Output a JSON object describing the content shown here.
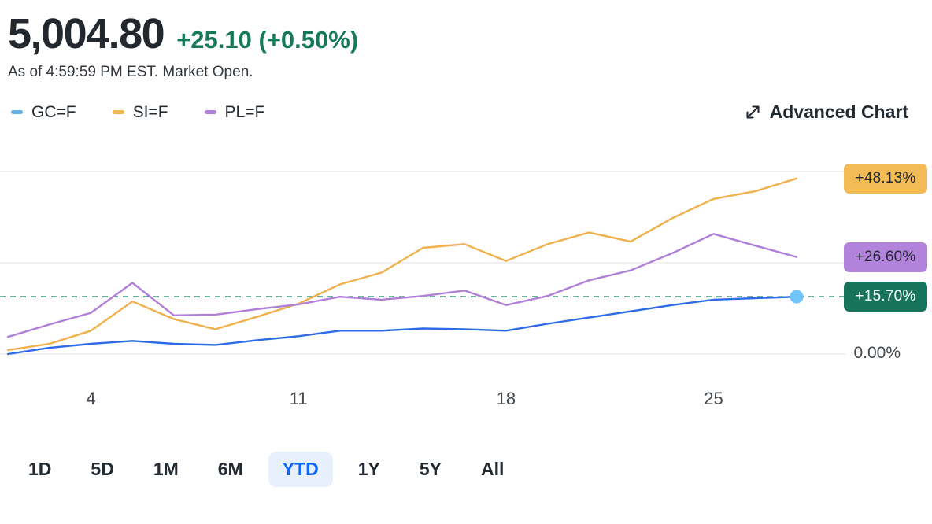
{
  "header": {
    "price": "5,004.80",
    "change": "+25.10 (+0.50%)",
    "as_of": "As of 4:59:59 PM EST. Market Open."
  },
  "legend": {
    "items": [
      {
        "label": "GC=F",
        "color": "#63b1e5"
      },
      {
        "label": "SI=F",
        "color": "#f2b84f"
      },
      {
        "label": "PL=F",
        "color": "#b07fd8"
      }
    ]
  },
  "advanced_chart": {
    "label": "Advanced Chart"
  },
  "chart_data": {
    "type": "line",
    "title": "YTD percent change comparison of GC=F, SI=F, PL=F",
    "x_tick_labels": [
      "4",
      "11",
      "18",
      "25"
    ],
    "x_tick_indices": [
      2,
      7,
      12,
      17
    ],
    "gridline_values": [
      0,
      25,
      50
    ],
    "ylim": [
      0,
      50
    ],
    "baseline_label": "0.00%",
    "reference_value": 15.7,
    "reference_color": "#2e7d6a",
    "grid_color": "#e3e3e3",
    "legend_position": "top-left",
    "series": [
      {
        "name": "GC=F",
        "color": "#2e6be6",
        "values": [
          0.0,
          1.7,
          2.8,
          3.6,
          2.8,
          2.5,
          3.8,
          4.9,
          6.4,
          6.4,
          7.0,
          6.8,
          6.4,
          8.3,
          10.0,
          11.7,
          13.4,
          14.9,
          15.3,
          15.7
        ],
        "badge_label": "+15.70%",
        "badge_bg": "#17735c",
        "badge_fg": "#ffffff",
        "end_dot": true,
        "end_dot_color": "#6ec4fb"
      },
      {
        "name": "SI=F",
        "color": "#f0b04c",
        "values": [
          1.1,
          2.8,
          6.4,
          14.4,
          9.6,
          6.8,
          10.2,
          13.8,
          19.1,
          22.3,
          29.1,
          30.1,
          25.5,
          30.1,
          33.3,
          30.8,
          37.2,
          42.5,
          44.6,
          48.1
        ],
        "badge_label": "+48.13%",
        "badge_bg": "#f3bb55",
        "badge_fg": "#232a31",
        "end_dot": false
      },
      {
        "name": "PL=F",
        "color": "#b07fd8",
        "values": [
          4.7,
          8.1,
          11.3,
          19.5,
          10.6,
          10.8,
          12.3,
          13.6,
          15.7,
          14.9,
          15.9,
          17.4,
          13.4,
          15.9,
          20.2,
          22.9,
          27.6,
          32.9,
          29.7,
          26.6
        ],
        "badge_label": "+26.60%",
        "badge_bg": "#b383dc",
        "badge_fg": "#232a31",
        "end_dot": false
      }
    ]
  },
  "range_buttons": [
    {
      "label": "1D",
      "active": false
    },
    {
      "label": "5D",
      "active": false
    },
    {
      "label": "1M",
      "active": false
    },
    {
      "label": "6M",
      "active": false
    },
    {
      "label": "YTD",
      "active": true
    },
    {
      "label": "1Y",
      "active": false
    },
    {
      "label": "5Y",
      "active": false
    },
    {
      "label": "All",
      "active": false
    }
  ],
  "colors": {
    "positive_green": "#177a56",
    "accent_blue": "#0f69ff",
    "range_active_bg": "#e7f0fc"
  }
}
